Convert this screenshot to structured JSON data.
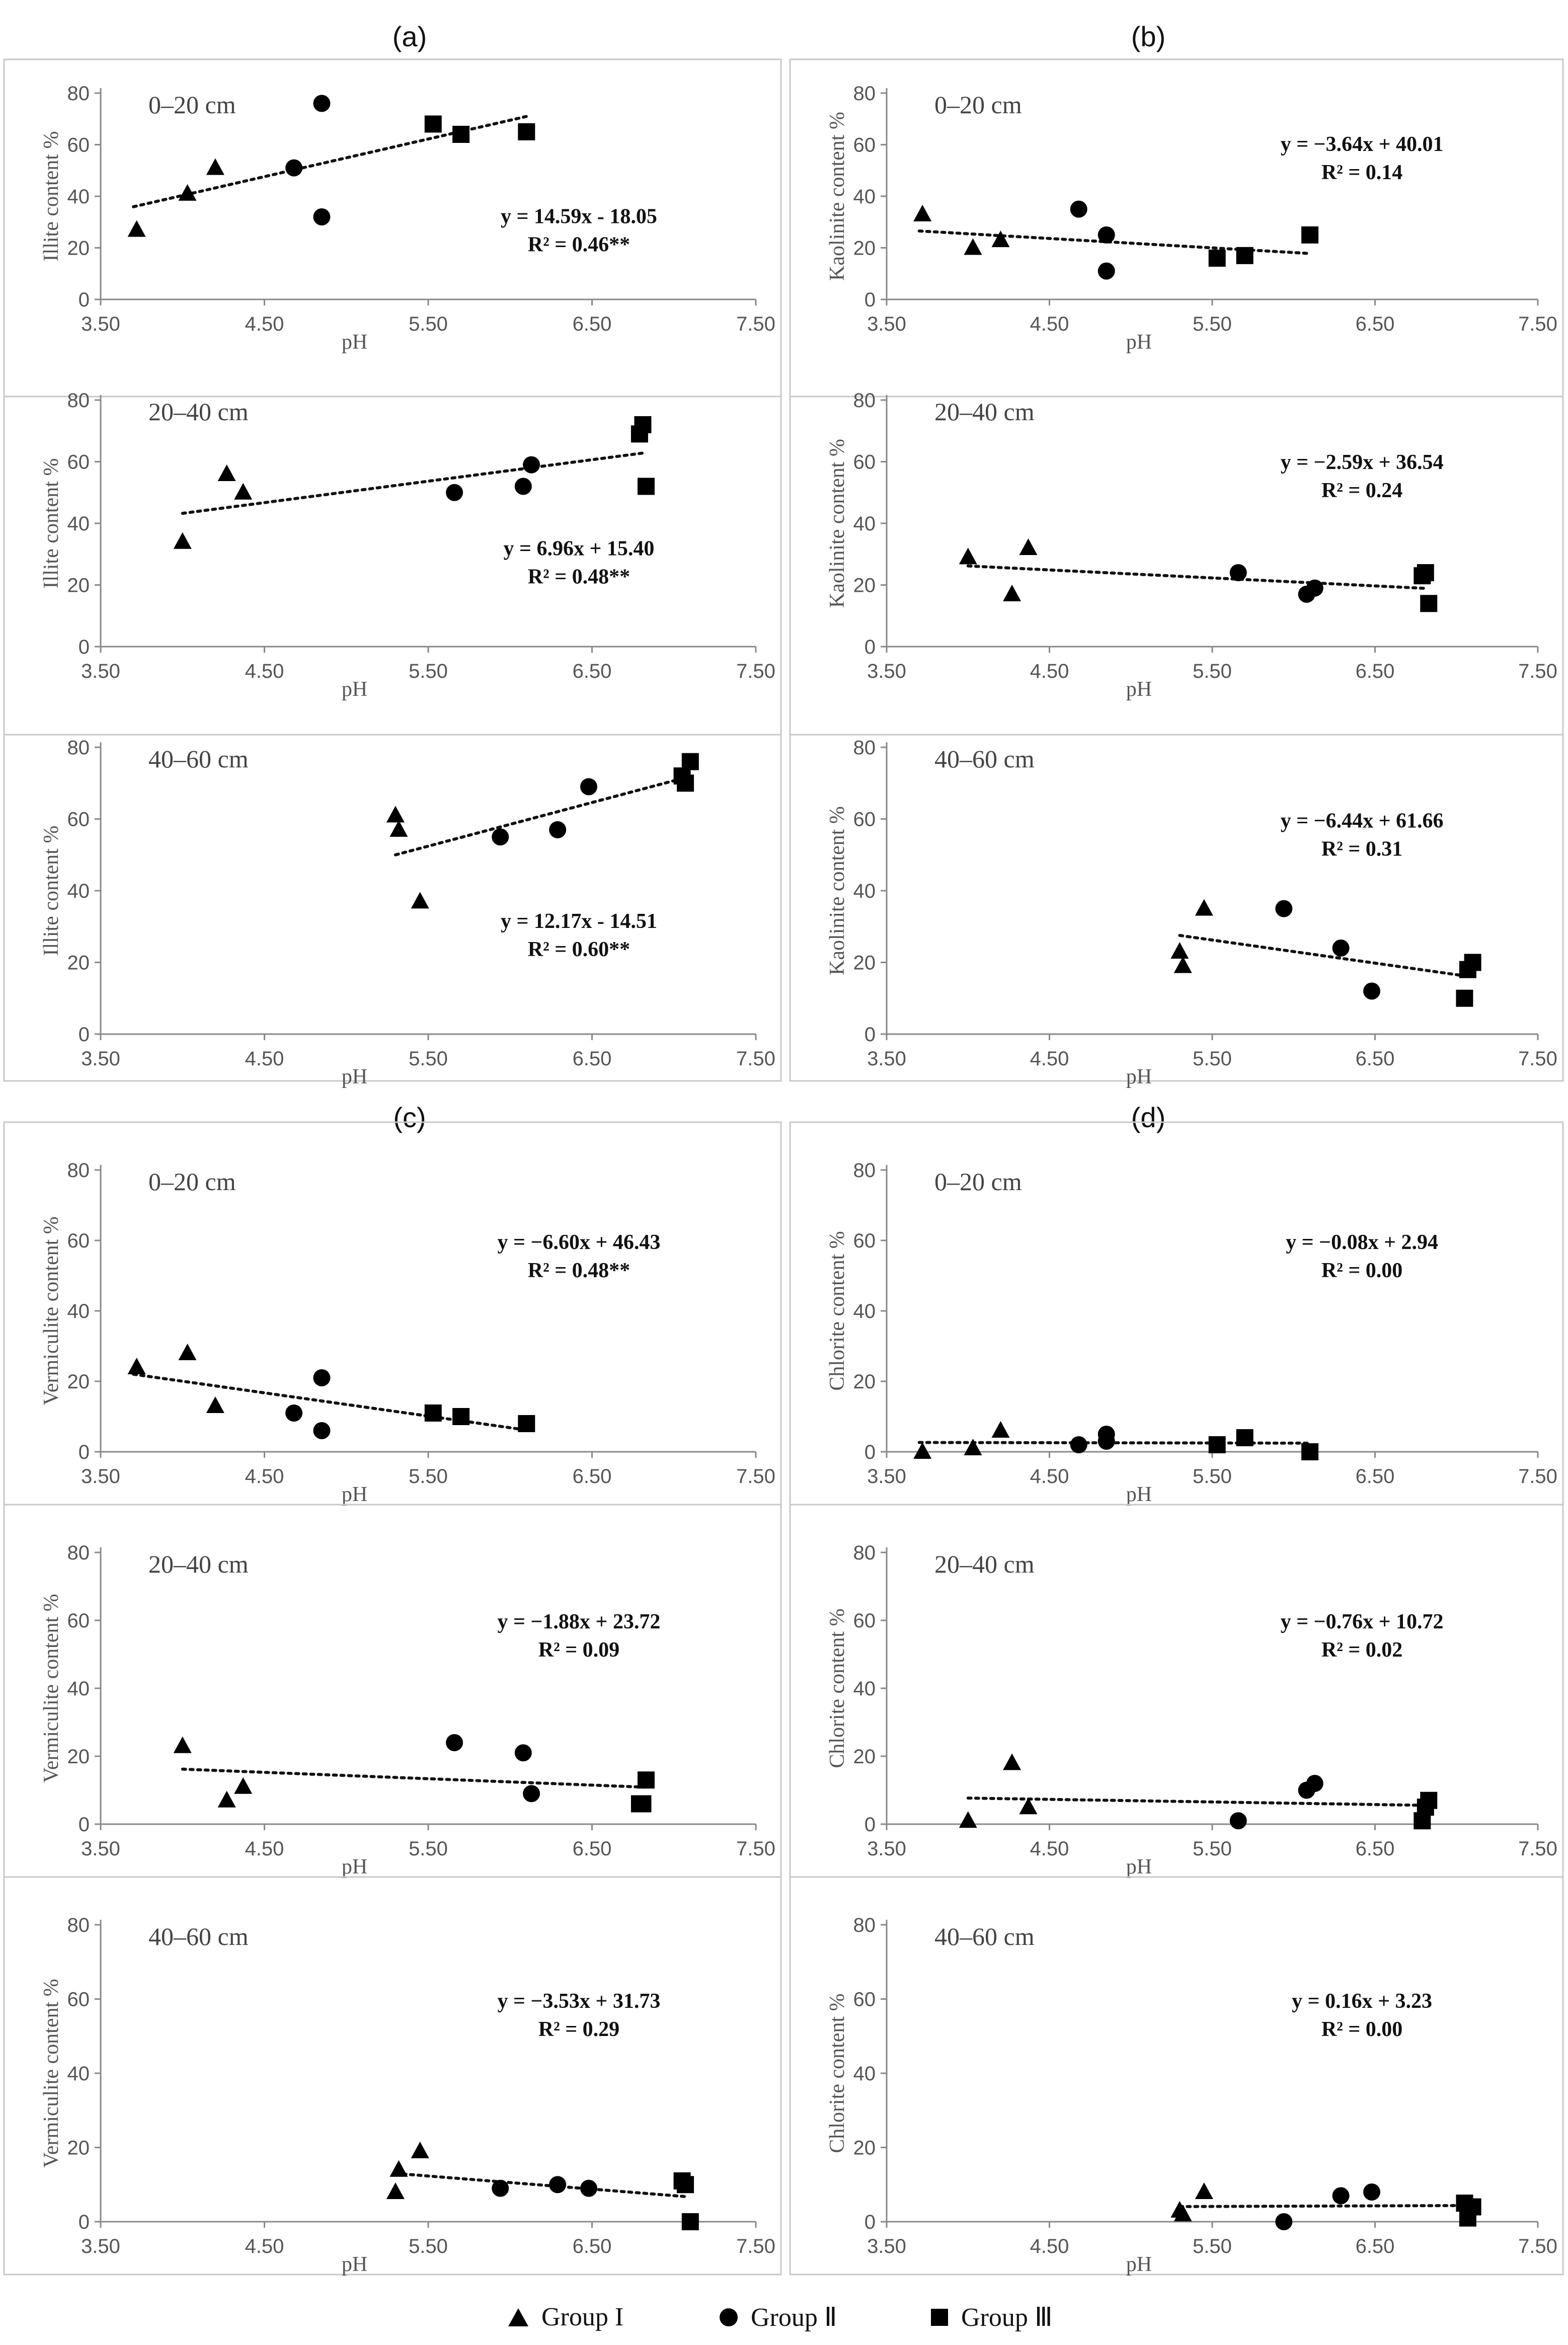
{
  "panel_letters": {
    "a": "(a)",
    "b": "(b)",
    "c": "(c)",
    "d": "(d)"
  },
  "legend": {
    "group1": "Group I",
    "group2": "Group Ⅱ",
    "group3": "Group Ⅲ"
  },
  "x_ticks": [
    "3.50",
    "4.50",
    "5.50",
    "6.50",
    "7.50"
  ],
  "xlabel": "pH",
  "chart_data": [
    {
      "id": "a1",
      "type": "scatter",
      "label": "0–20 cm",
      "ylabel": "Illite content %",
      "xlabel": "pH",
      "xlim": [
        3.5,
        7.5
      ],
      "ylim": [
        0,
        80
      ],
      "yticks": [
        0,
        20,
        40,
        60,
        80
      ],
      "equation": "y = 14.59x - 18.05",
      "r2": "R² = 0.46**",
      "trend": {
        "slope": 14.59,
        "intercept": -18.05,
        "x": [
          3.7,
          6.1
        ]
      },
      "series": [
        {
          "name": "Group I",
          "marker": "triangle",
          "points": [
            [
              3.72,
              27
            ],
            [
              4.03,
              41
            ],
            [
              4.2,
              51
            ]
          ]
        },
        {
          "name": "Group Ⅱ",
          "marker": "circle",
          "points": [
            [
              4.68,
              51
            ],
            [
              4.85,
              76
            ],
            [
              4.85,
              32
            ]
          ]
        },
        {
          "name": "Group Ⅲ",
          "marker": "square",
          "points": [
            [
              5.53,
              68
            ],
            [
              5.7,
              64
            ],
            [
              6.1,
              65
            ]
          ]
        }
      ]
    },
    {
      "id": "a2",
      "type": "scatter",
      "label": "20–40 cm",
      "ylabel": "Illite content %",
      "xlabel": "pH",
      "xlim": [
        3.5,
        7.5
      ],
      "ylim": [
        0,
        80
      ],
      "yticks": [
        0,
        20,
        40,
        60,
        80
      ],
      "equation": "y = 6.96x + 15.40",
      "r2": "R² = 0.48**",
      "trend": {
        "slope": 6.96,
        "intercept": 15.4,
        "x": [
          4.0,
          6.82
        ]
      },
      "series": [
        {
          "name": "Group I",
          "marker": "triangle",
          "points": [
            [
              4.0,
              34
            ],
            [
              4.27,
              56
            ],
            [
              4.37,
              50
            ]
          ]
        },
        {
          "name": "Group Ⅱ",
          "marker": "circle",
          "points": [
            [
              5.66,
              50
            ],
            [
              6.08,
              52
            ],
            [
              6.13,
              59
            ]
          ]
        },
        {
          "name": "Group Ⅲ",
          "marker": "square",
          "points": [
            [
              6.79,
              69
            ],
            [
              6.81,
              72
            ],
            [
              6.83,
              52
            ]
          ]
        }
      ]
    },
    {
      "id": "a3",
      "type": "scatter",
      "label": "40–60 cm",
      "ylabel": "Illite content %",
      "xlabel": "pH",
      "xlim": [
        3.5,
        7.5
      ],
      "ylim": [
        0,
        80
      ],
      "yticks": [
        0,
        20,
        40,
        60,
        80
      ],
      "equation": "y = 12.17x - 14.51",
      "r2": "R² = 0.60**",
      "trend": {
        "slope": 12.17,
        "intercept": -14.51,
        "x": [
          5.3,
          7.08
        ]
      },
      "series": [
        {
          "name": "Group I",
          "marker": "triangle",
          "points": [
            [
              5.3,
              61
            ],
            [
              5.32,
              57
            ],
            [
              5.45,
              37
            ]
          ]
        },
        {
          "name": "Group Ⅱ",
          "marker": "circle",
          "points": [
            [
              5.94,
              55
            ],
            [
              6.29,
              57
            ],
            [
              6.48,
              69
            ]
          ]
        },
        {
          "name": "Group Ⅲ",
          "marker": "square",
          "points": [
            [
              7.05,
              72
            ],
            [
              7.07,
              70
            ],
            [
              7.1,
              76
            ]
          ]
        }
      ]
    },
    {
      "id": "b1",
      "type": "scatter",
      "label": "0–20 cm",
      "ylabel": "Kaolinite content %",
      "xlabel": "pH",
      "xlim": [
        3.5,
        7.5
      ],
      "ylim": [
        0,
        80
      ],
      "yticks": [
        0,
        20,
        40,
        60,
        80
      ],
      "equation": "y = −3.64x + 40.01",
      "r2": "R² = 0.14",
      "trend": {
        "slope": -3.64,
        "intercept": 40.01,
        "x": [
          3.7,
          6.1
        ]
      },
      "series": [
        {
          "name": "Group I",
          "marker": "triangle",
          "points": [
            [
              3.72,
              33
            ],
            [
              4.03,
              20
            ],
            [
              4.2,
              23
            ]
          ]
        },
        {
          "name": "Group Ⅱ",
          "marker": "circle",
          "points": [
            [
              4.68,
              35
            ],
            [
              4.85,
              25
            ],
            [
              4.85,
              11
            ]
          ]
        },
        {
          "name": "Group Ⅲ",
          "marker": "square",
          "points": [
            [
              5.53,
              16
            ],
            [
              5.7,
              17
            ],
            [
              6.1,
              25
            ]
          ]
        }
      ]
    },
    {
      "id": "b2",
      "type": "scatter",
      "label": "20–40 cm",
      "ylabel": "Kaolinite content %",
      "xlabel": "pH",
      "xlim": [
        3.5,
        7.5
      ],
      "ylim": [
        0,
        80
      ],
      "yticks": [
        0,
        20,
        40,
        60,
        80
      ],
      "equation": "y = −2.59x + 36.54",
      "r2": "R² = 0.24",
      "trend": {
        "slope": -2.59,
        "intercept": 36.54,
        "x": [
          4.0,
          6.82
        ]
      },
      "series": [
        {
          "name": "Group I",
          "marker": "triangle",
          "points": [
            [
              4.0,
              29
            ],
            [
              4.27,
              17
            ],
            [
              4.37,
              32
            ]
          ]
        },
        {
          "name": "Group Ⅱ",
          "marker": "circle",
          "points": [
            [
              5.66,
              24
            ],
            [
              6.08,
              17
            ],
            [
              6.13,
              19
            ]
          ]
        },
        {
          "name": "Group Ⅲ",
          "marker": "square",
          "points": [
            [
              6.79,
              23
            ],
            [
              6.81,
              24
            ],
            [
              6.83,
              14
            ]
          ]
        }
      ]
    },
    {
      "id": "b3",
      "type": "scatter",
      "label": "40–60 cm",
      "ylabel": "Kaolinite content %",
      "xlabel": "pH",
      "xlim": [
        3.5,
        7.5
      ],
      "ylim": [
        0,
        80
      ],
      "yticks": [
        0,
        20,
        40,
        60,
        80
      ],
      "equation": "y = −6.44x + 61.66",
      "r2": "R² = 0.31",
      "trend": {
        "slope": -6.44,
        "intercept": 61.66,
        "x": [
          5.3,
          7.08
        ]
      },
      "series": [
        {
          "name": "Group I",
          "marker": "triangle",
          "points": [
            [
              5.3,
              23
            ],
            [
              5.32,
              19
            ],
            [
              5.45,
              35
            ]
          ]
        },
        {
          "name": "Group Ⅱ",
          "marker": "circle",
          "points": [
            [
              5.94,
              35
            ],
            [
              6.29,
              24
            ],
            [
              6.48,
              12
            ]
          ]
        },
        {
          "name": "Group Ⅲ",
          "marker": "square",
          "points": [
            [
              7.05,
              10
            ],
            [
              7.07,
              18
            ],
            [
              7.1,
              20
            ]
          ]
        }
      ]
    },
    {
      "id": "c1",
      "type": "scatter",
      "label": "0–20 cm",
      "ylabel": "Vermiculite content %",
      "xlabel": "pH",
      "xlim": [
        3.5,
        7.5
      ],
      "ylim": [
        0,
        80
      ],
      "yticks": [
        0,
        20,
        40,
        60,
        80
      ],
      "equation": "y = −6.60x + 46.43",
      "r2": "R² = 0.48**",
      "trend": {
        "slope": -6.6,
        "intercept": 46.43,
        "x": [
          3.7,
          6.1
        ]
      },
      "series": [
        {
          "name": "Group I",
          "marker": "triangle",
          "points": [
            [
              3.72,
              24
            ],
            [
              4.03,
              28
            ],
            [
              4.2,
              13
            ]
          ]
        },
        {
          "name": "Group Ⅱ",
          "marker": "circle",
          "points": [
            [
              4.68,
              11
            ],
            [
              4.85,
              21
            ],
            [
              4.85,
              6
            ]
          ]
        },
        {
          "name": "Group Ⅲ",
          "marker": "square",
          "points": [
            [
              5.53,
              11
            ],
            [
              5.7,
              10
            ],
            [
              6.1,
              8
            ]
          ]
        }
      ]
    },
    {
      "id": "c2",
      "type": "scatter",
      "label": "20–40 cm",
      "ylabel": "Vermiculite content %",
      "xlabel": "pH",
      "xlim": [
        3.5,
        7.5
      ],
      "ylim": [
        0,
        80
      ],
      "yticks": [
        0,
        20,
        40,
        60,
        80
      ],
      "equation": "y = −1.88x + 23.72",
      "r2": "R² = 0.09",
      "trend": {
        "slope": -1.88,
        "intercept": 23.72,
        "x": [
          4.0,
          6.82
        ]
      },
      "series": [
        {
          "name": "Group I",
          "marker": "triangle",
          "points": [
            [
              4.0,
              23
            ],
            [
              4.27,
              7
            ],
            [
              4.37,
              11
            ]
          ]
        },
        {
          "name": "Group Ⅱ",
          "marker": "circle",
          "points": [
            [
              5.66,
              24
            ],
            [
              6.08,
              21
            ],
            [
              6.13,
              9
            ]
          ]
        },
        {
          "name": "Group Ⅲ",
          "marker": "square",
          "points": [
            [
              6.79,
              6
            ],
            [
              6.81,
              6
            ],
            [
              6.83,
              13
            ]
          ]
        }
      ]
    },
    {
      "id": "c3",
      "type": "scatter",
      "label": "40–60 cm",
      "ylabel": "Vermiculite content %",
      "xlabel": "pH",
      "xlim": [
        3.5,
        7.5
      ],
      "ylim": [
        0,
        80
      ],
      "yticks": [
        0,
        20,
        40,
        60,
        80
      ],
      "equation": "y = −3.53x + 31.73",
      "r2": "R² = 0.29",
      "trend": {
        "slope": -3.53,
        "intercept": 31.73,
        "x": [
          5.3,
          7.08
        ]
      },
      "series": [
        {
          "name": "Group I",
          "marker": "triangle",
          "points": [
            [
              5.3,
              8
            ],
            [
              5.32,
              14
            ],
            [
              5.45,
              19
            ]
          ]
        },
        {
          "name": "Group Ⅱ",
          "marker": "circle",
          "points": [
            [
              5.94,
              9
            ],
            [
              6.29,
              10
            ],
            [
              6.48,
              9
            ]
          ]
        },
        {
          "name": "Group Ⅲ",
          "marker": "square",
          "points": [
            [
              7.05,
              11
            ],
            [
              7.07,
              10
            ],
            [
              7.1,
              0
            ]
          ]
        }
      ]
    },
    {
      "id": "d1",
      "type": "scatter",
      "label": "0–20 cm",
      "ylabel": "Chlorite content %",
      "xlabel": "pH",
      "xlim": [
        3.5,
        7.5
      ],
      "ylim": [
        0,
        80
      ],
      "yticks": [
        0,
        20,
        40,
        60,
        80
      ],
      "equation": "y = −0.08x + 2.94",
      "r2": "R² = 0.00",
      "trend": {
        "slope": -0.08,
        "intercept": 2.94,
        "x": [
          3.7,
          6.1
        ]
      },
      "series": [
        {
          "name": "Group I",
          "marker": "triangle",
          "points": [
            [
              3.72,
              0
            ],
            [
              4.03,
              1
            ],
            [
              4.2,
              6
            ]
          ]
        },
        {
          "name": "Group Ⅱ",
          "marker": "circle",
          "points": [
            [
              4.68,
              2
            ],
            [
              4.85,
              5
            ],
            [
              4.85,
              3
            ]
          ]
        },
        {
          "name": "Group Ⅲ",
          "marker": "square",
          "points": [
            [
              5.53,
              2
            ],
            [
              5.7,
              4
            ],
            [
              6.1,
              0
            ]
          ]
        }
      ]
    },
    {
      "id": "d2",
      "type": "scatter",
      "label": "20–40 cm",
      "ylabel": "Chlorite content %",
      "xlabel": "pH",
      "xlim": [
        3.5,
        7.5
      ],
      "ylim": [
        0,
        80
      ],
      "yticks": [
        0,
        20,
        40,
        60,
        80
      ],
      "equation": "y = −0.76x + 10.72",
      "r2": "R² = 0.02",
      "trend": {
        "slope": -0.76,
        "intercept": 10.72,
        "x": [
          4.0,
          6.82
        ]
      },
      "series": [
        {
          "name": "Group I",
          "marker": "triangle",
          "points": [
            [
              4.0,
              1
            ],
            [
              4.27,
              18
            ],
            [
              4.37,
              5
            ]
          ]
        },
        {
          "name": "Group Ⅱ",
          "marker": "circle",
          "points": [
            [
              5.66,
              1
            ],
            [
              6.08,
              10
            ],
            [
              6.13,
              12
            ]
          ]
        },
        {
          "name": "Group Ⅲ",
          "marker": "square",
          "points": [
            [
              6.79,
              1
            ],
            [
              6.81,
              5
            ],
            [
              6.83,
              7
            ]
          ]
        }
      ]
    },
    {
      "id": "d3",
      "type": "scatter",
      "label": "40–60 cm",
      "ylabel": "Chlorite content %",
      "xlabel": "pH",
      "xlim": [
        3.5,
        7.5
      ],
      "ylim": [
        0,
        80
      ],
      "yticks": [
        0,
        20,
        40,
        60,
        80
      ],
      "equation": "y = 0.16x + 3.23",
      "r2": "R² = 0.00",
      "trend": {
        "slope": 0.16,
        "intercept": 3.23,
        "x": [
          5.3,
          7.08
        ]
      },
      "series": [
        {
          "name": "Group I",
          "marker": "triangle",
          "points": [
            [
              5.3,
              3
            ],
            [
              5.32,
              2
            ],
            [
              5.45,
              8
            ]
          ]
        },
        {
          "name": "Group Ⅱ",
          "marker": "circle",
          "points": [
            [
              5.94,
              0
            ],
            [
              6.29,
              7
            ],
            [
              6.48,
              8
            ]
          ]
        },
        {
          "name": "Group Ⅲ",
          "marker": "square",
          "points": [
            [
              7.05,
              5
            ],
            [
              7.07,
              1
            ],
            [
              7.1,
              4
            ]
          ]
        }
      ]
    }
  ]
}
